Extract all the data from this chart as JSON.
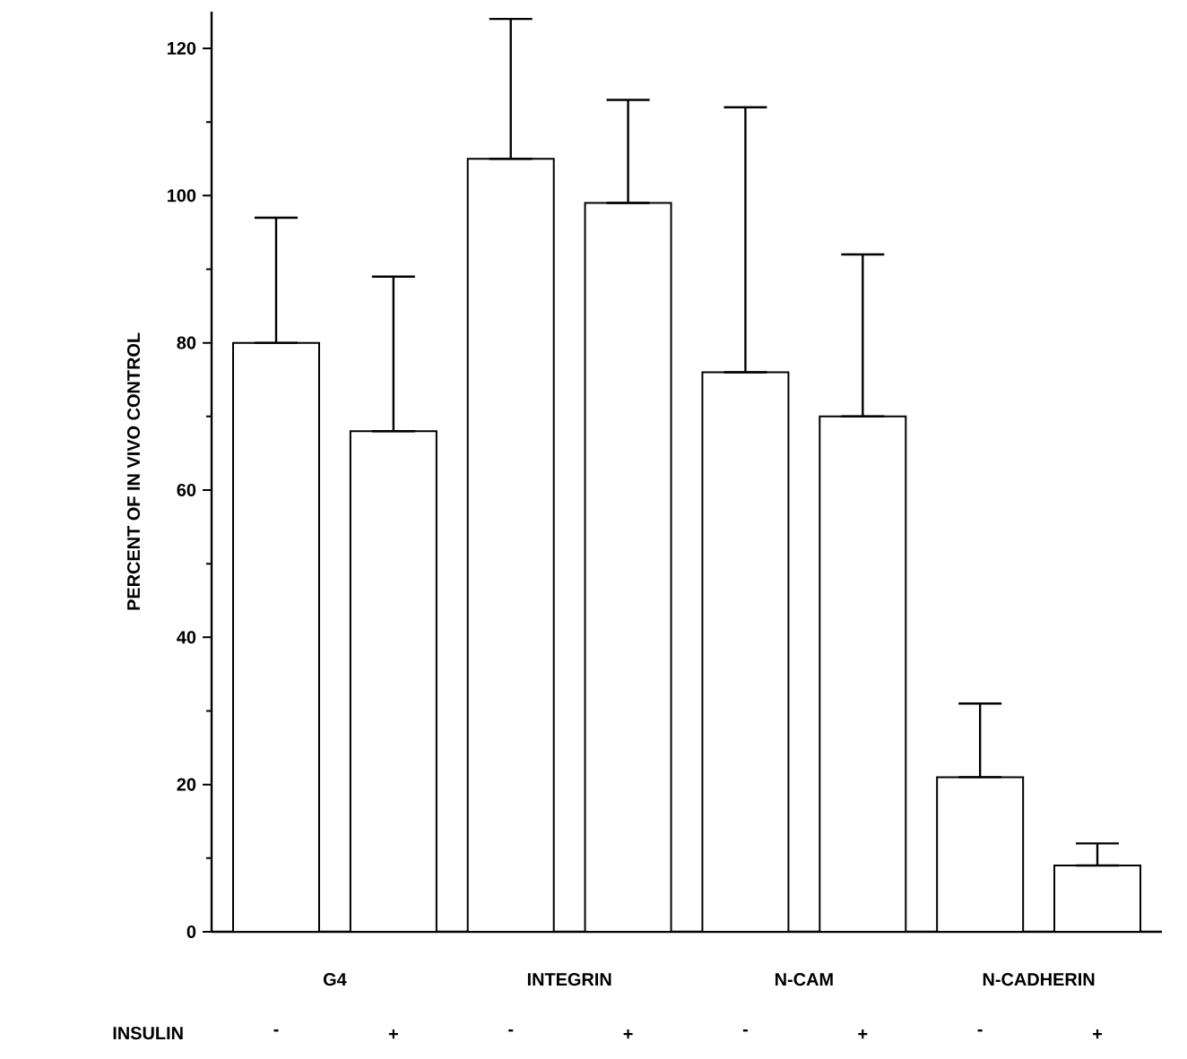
{
  "chart_data": {
    "type": "bar",
    "ylabel": "PERCENT OF IN VIVO CONTROL",
    "xlabel": "INSULIN",
    "categories": [
      "-",
      "+",
      "-",
      "+",
      "-",
      "+",
      "-",
      "+"
    ],
    "annotations": [
      "G4",
      "INTEGRIN",
      "N-CAM",
      "N-CADHERIN"
    ],
    "values": [
      80,
      68,
      105,
      99,
      76,
      70,
      21,
      9
    ],
    "errors": [
      [
        80,
        97
      ],
      [
        68,
        89
      ],
      [
        105,
        124
      ],
      [
        99,
        113
      ],
      [
        76,
        112
      ],
      [
        70,
        92
      ],
      [
        21,
        31
      ],
      [
        9,
        12
      ]
    ],
    "color": "#ffffff",
    "ylim": [
      0,
      125
    ],
    "yticks": [
      0,
      20,
      40,
      60,
      80,
      100,
      120
    ],
    "grid": false
  }
}
